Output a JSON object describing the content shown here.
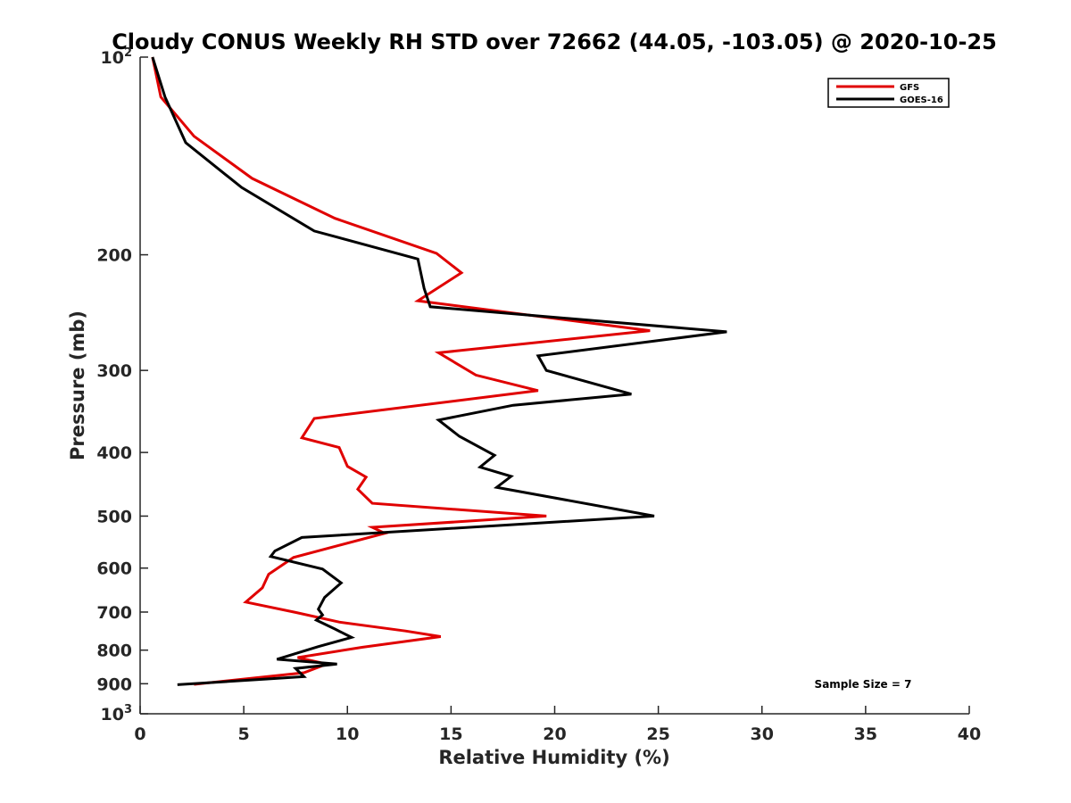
{
  "chart_data": {
    "type": "line",
    "title": "Cloudy CONUS Weekly RH STD over 72662 (44.05, -103.05) @ 2020-10-25",
    "xlabel": "Relative Humidity (%)",
    "ylabel": "Pressure (mb)",
    "xlim": [
      0,
      40
    ],
    "ylim": [
      100,
      1000
    ],
    "y_scale": "log",
    "y_reversed": true,
    "x_ticks": [
      0,
      5,
      10,
      15,
      20,
      25,
      30,
      35,
      40
    ],
    "y_ticks": [
      {
        "value": 100,
        "base": "10",
        "exp": "2"
      },
      {
        "value": 200,
        "label": "200"
      },
      {
        "value": 300,
        "label": "300"
      },
      {
        "value": 400,
        "label": "400"
      },
      {
        "value": 500,
        "label": "500"
      },
      {
        "value": 600,
        "label": "600"
      },
      {
        "value": 700,
        "label": "700"
      },
      {
        "value": 800,
        "label": "800"
      },
      {
        "value": 900,
        "label": "900"
      },
      {
        "value": 1000,
        "base": "10",
        "exp": "3"
      }
    ],
    "grid": false,
    "legend_position": "top-right",
    "annotation": "Sample Size = 7",
    "series": [
      {
        "name": "GFS",
        "color": "#e00000",
        "points": [
          [
            0.6,
            100
          ],
          [
            1.0,
            115
          ],
          [
            2.6,
            132
          ],
          [
            5.4,
            153
          ],
          [
            9.4,
            176
          ],
          [
            14.3,
            199
          ],
          [
            15.5,
            213
          ],
          [
            13.4,
            235
          ],
          [
            24.6,
            261
          ],
          [
            14.4,
            282
          ],
          [
            16.2,
            305
          ],
          [
            19.2,
            322
          ],
          [
            8.4,
            355
          ],
          [
            7.8,
            380
          ],
          [
            9.6,
            393
          ],
          [
            10.0,
            420
          ],
          [
            10.9,
            436
          ],
          [
            10.5,
            455
          ],
          [
            11.2,
            478
          ],
          [
            19.6,
            500
          ],
          [
            11.2,
            520
          ],
          [
            11.8,
            531
          ],
          [
            9.6,
            554
          ],
          [
            7.4,
            578
          ],
          [
            6.2,
            613
          ],
          [
            5.9,
            643
          ],
          [
            5.1,
            676
          ],
          [
            7.5,
            701
          ],
          [
            9.6,
            725
          ],
          [
            12.8,
            748
          ],
          [
            14.5,
            763
          ],
          [
            10.7,
            792
          ],
          [
            7.6,
            821
          ],
          [
            9.0,
            840
          ],
          [
            7.9,
            866
          ],
          [
            2.6,
            902
          ]
        ]
      },
      {
        "name": "GOES-16",
        "color": "#000000",
        "points": [
          [
            0.6,
            100
          ],
          [
            1.2,
            115
          ],
          [
            2.2,
            135
          ],
          [
            4.9,
            158
          ],
          [
            8.4,
            184
          ],
          [
            13.4,
            203
          ],
          [
            13.7,
            225
          ],
          [
            14.0,
            240
          ],
          [
            28.3,
            262
          ],
          [
            19.2,
            285
          ],
          [
            19.6,
            300
          ],
          [
            23.7,
            326
          ],
          [
            18.0,
            339
          ],
          [
            14.4,
            357
          ],
          [
            15.4,
            378
          ],
          [
            17.1,
            404
          ],
          [
            16.4,
            421
          ],
          [
            17.9,
            435
          ],
          [
            17.2,
            452
          ],
          [
            24.8,
            500
          ],
          [
            7.8,
            539
          ],
          [
            6.5,
            565
          ],
          [
            6.3,
            576
          ],
          [
            8.8,
            602
          ],
          [
            9.7,
            632
          ],
          [
            8.9,
            665
          ],
          [
            8.6,
            693
          ],
          [
            8.8,
            707
          ],
          [
            8.5,
            720
          ],
          [
            9.4,
            743
          ],
          [
            10.2,
            765
          ],
          [
            8.6,
            790
          ],
          [
            6.6,
            826
          ],
          [
            9.5,
            840
          ],
          [
            7.5,
            853
          ],
          [
            7.9,
            878
          ],
          [
            1.8,
            903
          ]
        ]
      }
    ]
  }
}
